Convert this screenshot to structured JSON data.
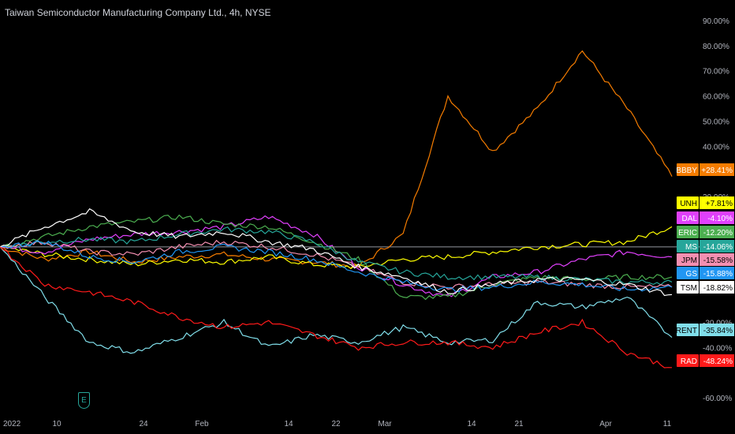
{
  "chart_data": {
    "type": "line",
    "title": "Taiwan Semiconductor Manufacturing Company Ltd., 4h, NYSE",
    "y_axis": {
      "unit": "percent change",
      "ticks": [
        "90.00%",
        "80.00%",
        "70.00%",
        "60.00%",
        "50.00%",
        "40.00%",
        "20.00%",
        "-30.00%",
        "-40.00%",
        "-60.00%"
      ],
      "ylim": [
        -65,
        95
      ]
    },
    "x_axis": {
      "ticks": [
        "2022",
        "10",
        "24",
        "Feb",
        "14",
        "22",
        "Mar",
        "14",
        "21",
        "Apr",
        "11"
      ]
    },
    "baseline": 0,
    "grid": false,
    "x": [
      "Jan 3",
      "Jan 10",
      "Jan 17",
      "Jan 24",
      "Jan 31",
      "Feb 7",
      "Feb 14",
      "Feb 21",
      "Feb 28",
      "Mar 3",
      "Mar 7",
      "Mar 14",
      "Mar 21",
      "Mar 28",
      "Apr 4",
      "Apr 11"
    ],
    "series": [
      {
        "name": "BBBY",
        "color": "#f57c00",
        "last": "+28.41%",
        "values": [
          0,
          -5,
          -2,
          -6,
          -4,
          -3,
          -5,
          -6,
          -8,
          5,
          60,
          38,
          55,
          78,
          55,
          28
        ]
      },
      {
        "name": "UNH",
        "color": "#ffff00",
        "last": "+7.81%",
        "values": [
          0,
          -3,
          -5,
          -7,
          -5,
          -6,
          -4,
          -7,
          -8,
          -5,
          -4,
          -2,
          0,
          1,
          2,
          8
        ]
      },
      {
        "name": "DAL",
        "color": "#e040fb",
        "last": "-4.10%",
        "values": [
          0,
          -2,
          3,
          5,
          6,
          8,
          12,
          5,
          -8,
          -15,
          -20,
          -12,
          -10,
          -5,
          -2,
          -4
        ]
      },
      {
        "name": "ERIC",
        "color": "#4caf50",
        "last": "-12.20%",
        "values": [
          0,
          4,
          8,
          10,
          12,
          9,
          8,
          2,
          -5,
          -20,
          -20,
          -15,
          -12,
          -13,
          -12,
          -12
        ]
      },
      {
        "name": "MS",
        "color": "#26a69a",
        "last": "-14.06%",
        "values": [
          0,
          2,
          3,
          2,
          5,
          7,
          6,
          2,
          -6,
          -10,
          -12,
          -12,
          -12,
          -13,
          -14,
          -14
        ]
      },
      {
        "name": "JPM",
        "color": "#f48fb1",
        "last": "-15.58%",
        "values": [
          0,
          2,
          -2,
          -3,
          0,
          2,
          0,
          -3,
          -8,
          -14,
          -16,
          -15,
          -14,
          -15,
          -16,
          -16
        ]
      },
      {
        "name": "GS",
        "color": "#2196f3",
        "last": "-15.88%",
        "values": [
          0,
          2,
          -4,
          -6,
          -2,
          0,
          -2,
          -5,
          -10,
          -14,
          -17,
          -16,
          -14,
          -15,
          -17,
          -16
        ]
      },
      {
        "name": "TSM",
        "color": "#ffffff",
        "last": "-18.82%",
        "values": [
          0,
          8,
          14,
          6,
          4,
          6,
          2,
          -1,
          -8,
          -12,
          -18,
          -15,
          -13,
          -13,
          -15,
          -19
        ]
      },
      {
        "name": "RENT",
        "color": "#80deea",
        "last": "-35.84%",
        "values": [
          0,
          -20,
          -38,
          -42,
          -36,
          -30,
          -40,
          -35,
          -38,
          -32,
          -38,
          -37,
          -22,
          -24,
          -20,
          -36
        ]
      },
      {
        "name": "RAD",
        "color": "#ff1a1a",
        "last": "-48.24%",
        "values": [
          0,
          -15,
          -18,
          -22,
          -28,
          -32,
          -30,
          -35,
          -40,
          -38,
          -38,
          -40,
          -34,
          -30,
          -42,
          -48
        ]
      }
    ]
  },
  "marker": {
    "label": "E"
  }
}
